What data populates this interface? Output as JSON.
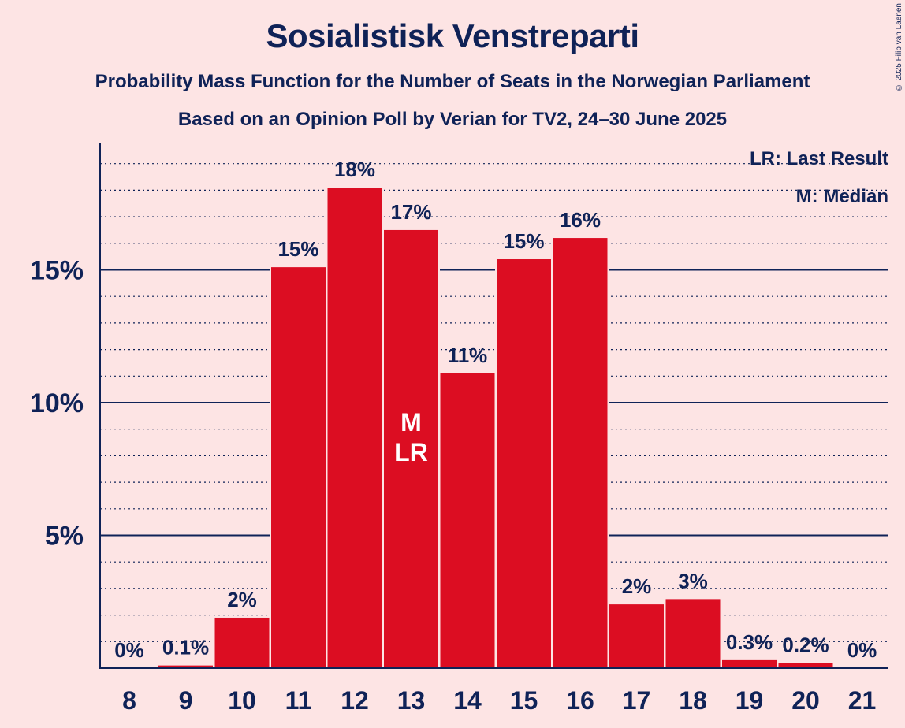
{
  "title": "Sosialistisk Venstreparti",
  "subtitle1": "Probability Mass Function for the Number of Seats in the Norwegian Parliament",
  "subtitle2": "Based on an Opinion Poll by Verian for TV2, 24–30 June 2025",
  "copyright": "© 2025 Filip van Laenen",
  "legend": {
    "lr": "LR: Last Result",
    "m": "M: Median"
  },
  "colors": {
    "bar": "#dc0d22",
    "background": "#fde4e4",
    "text": "#0f2257"
  },
  "chart_data": {
    "type": "bar",
    "categories": [
      "8",
      "9",
      "10",
      "11",
      "12",
      "13",
      "14",
      "15",
      "16",
      "17",
      "18",
      "19",
      "20",
      "21"
    ],
    "values": [
      0,
      0.1,
      1.9,
      15.1,
      18.1,
      16.5,
      11.1,
      15.4,
      16.2,
      2.4,
      2.6,
      0.3,
      0.2,
      0
    ],
    "data_labels": [
      "0%",
      "0.1%",
      "2%",
      "15%",
      "18%",
      "17%",
      "11%",
      "15%",
      "16%",
      "2%",
      "3%",
      "0.3%",
      "0.2%",
      "0%"
    ],
    "y_ticks": [
      5,
      10,
      15
    ],
    "y_tick_labels": [
      "5%",
      "10%",
      "15%"
    ],
    "ylim": [
      0,
      19.7
    ],
    "median_category": "13",
    "last_result_category": "13",
    "median_marker": "M",
    "last_result_marker": "LR",
    "legend_position": "top-right",
    "grid": true
  }
}
